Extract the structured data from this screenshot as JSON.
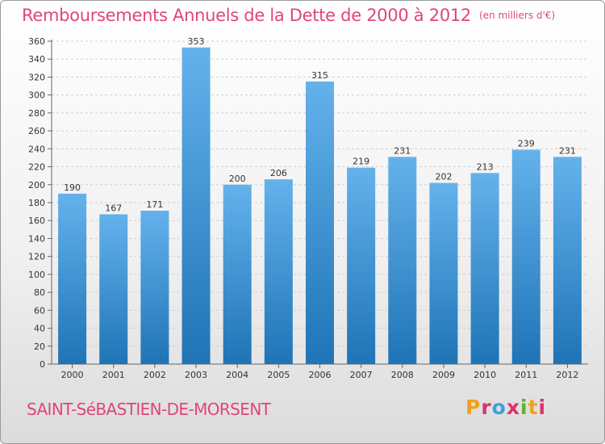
{
  "header": {
    "title": "Remboursements Annuels de la Dette de 2000 à 2012",
    "subtitle": "(en milliers d'€)"
  },
  "footer": {
    "town": "SAINT-SéBASTIEN-DE-MORSENT",
    "logo_letters": [
      "P",
      "r",
      "o",
      "x",
      "i",
      "t",
      "i"
    ],
    "logo_colors": [
      "#f0a020",
      "#e03070",
      "#3aa0e0",
      "#e03070",
      "#60b030",
      "#f0a020",
      "#e03070"
    ]
  },
  "colors": {
    "bar_top": "#64b2ec",
    "bar_bottom": "#1f74b6",
    "title": "#e0457a"
  },
  "chart_data": {
    "type": "bar",
    "title": "Remboursements Annuels de la Dette de 2000 à 2012",
    "subtitle": "(en milliers d'€)",
    "categories": [
      "2000",
      "2001",
      "2002",
      "2003",
      "2004",
      "2005",
      "2006",
      "2007",
      "2008",
      "2009",
      "2010",
      "2011",
      "2012"
    ],
    "values": [
      190,
      167,
      171,
      353,
      200,
      206,
      315,
      219,
      231,
      202,
      213,
      239,
      231
    ],
    "ylim": [
      0,
      360
    ],
    "yticks": [
      0,
      20,
      40,
      60,
      80,
      100,
      120,
      140,
      160,
      180,
      200,
      220,
      240,
      260,
      280,
      300,
      320,
      340,
      360
    ],
    "grid": true,
    "xlabel": "",
    "ylabel": ""
  }
}
